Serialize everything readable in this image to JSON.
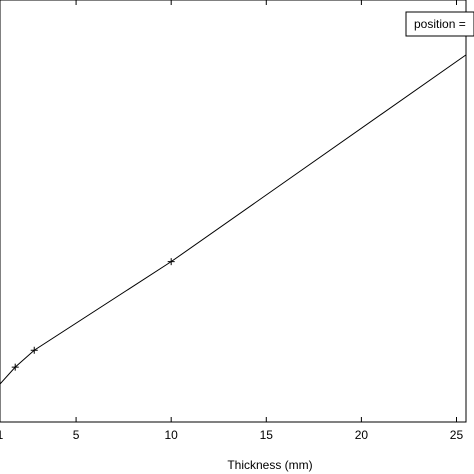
{
  "chart_data": {
    "type": "line",
    "xlabel": "Thickness (mm)",
    "ylabel": "",
    "xlim": [
      1,
      25.5
    ],
    "ylim": [
      0,
      1
    ],
    "grid": false,
    "x_ticks": [
      {
        "value": 1,
        "label": "1"
      },
      {
        "value": 5,
        "label": "5"
      },
      {
        "value": 10,
        "label": "10"
      },
      {
        "value": 15,
        "label": "15"
      },
      {
        "value": 20,
        "label": "20"
      },
      {
        "value": 25,
        "label": "25"
      }
    ],
    "series": [
      {
        "x": [
          1,
          1.8,
          2.8,
          10,
          25.5
        ],
        "y": [
          0.09,
          0.13,
          0.17,
          0.38,
          0.87
        ],
        "markers": [
          false,
          true,
          true,
          true,
          false
        ],
        "color": "#000000"
      }
    ],
    "legend_text": "position =",
    "legend_position": "top-right"
  }
}
